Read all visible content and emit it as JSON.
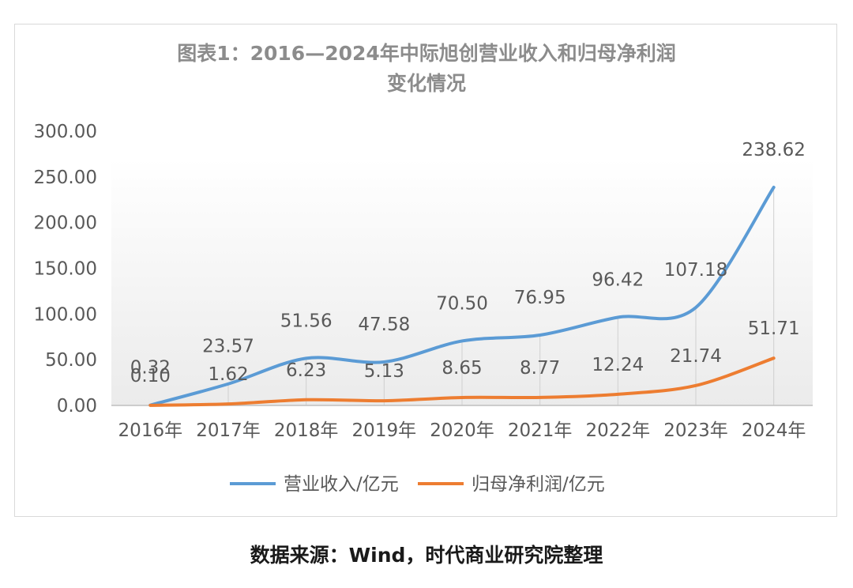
{
  "chart_data": {
    "type": "line",
    "title_lines": [
      "图表1：2016—2024年中际旭创营业收入和归母净利润",
      "变化情况"
    ],
    "categories": [
      "2016年",
      "2017年",
      "2018年",
      "2019年",
      "2020年",
      "2021年",
      "2022年",
      "2023年",
      "2024年"
    ],
    "series": [
      {
        "name": "营业收入/亿元",
        "color": "#5b9bd5",
        "values": [
          0.32,
          23.57,
          51.56,
          47.58,
          70.5,
          76.95,
          96.42,
          107.18,
          238.62
        ],
        "labels": [
          "0.32",
          "23.57",
          "51.56",
          "47.58",
          "70.50",
          "76.95",
          "96.42",
          "107.18",
          "238.62"
        ]
      },
      {
        "name": "归母净利润/亿元",
        "color": "#ed7d31",
        "values": [
          0.1,
          1.62,
          6.23,
          5.13,
          8.65,
          8.77,
          12.24,
          21.74,
          51.71
        ],
        "labels": [
          "0.10",
          "1.62",
          "6.23",
          "5.13",
          "8.65",
          "8.77",
          "12.24",
          "21.74",
          "51.71"
        ]
      }
    ],
    "y_ticks": [
      "0.00",
      "50.00",
      "100.00",
      "150.00",
      "200.00",
      "250.00",
      "300.00"
    ],
    "ylim": [
      0,
      300
    ],
    "legend_position": "bottom",
    "grid": false
  },
  "source": "数据来源：Wind，时代商业研究院整理"
}
